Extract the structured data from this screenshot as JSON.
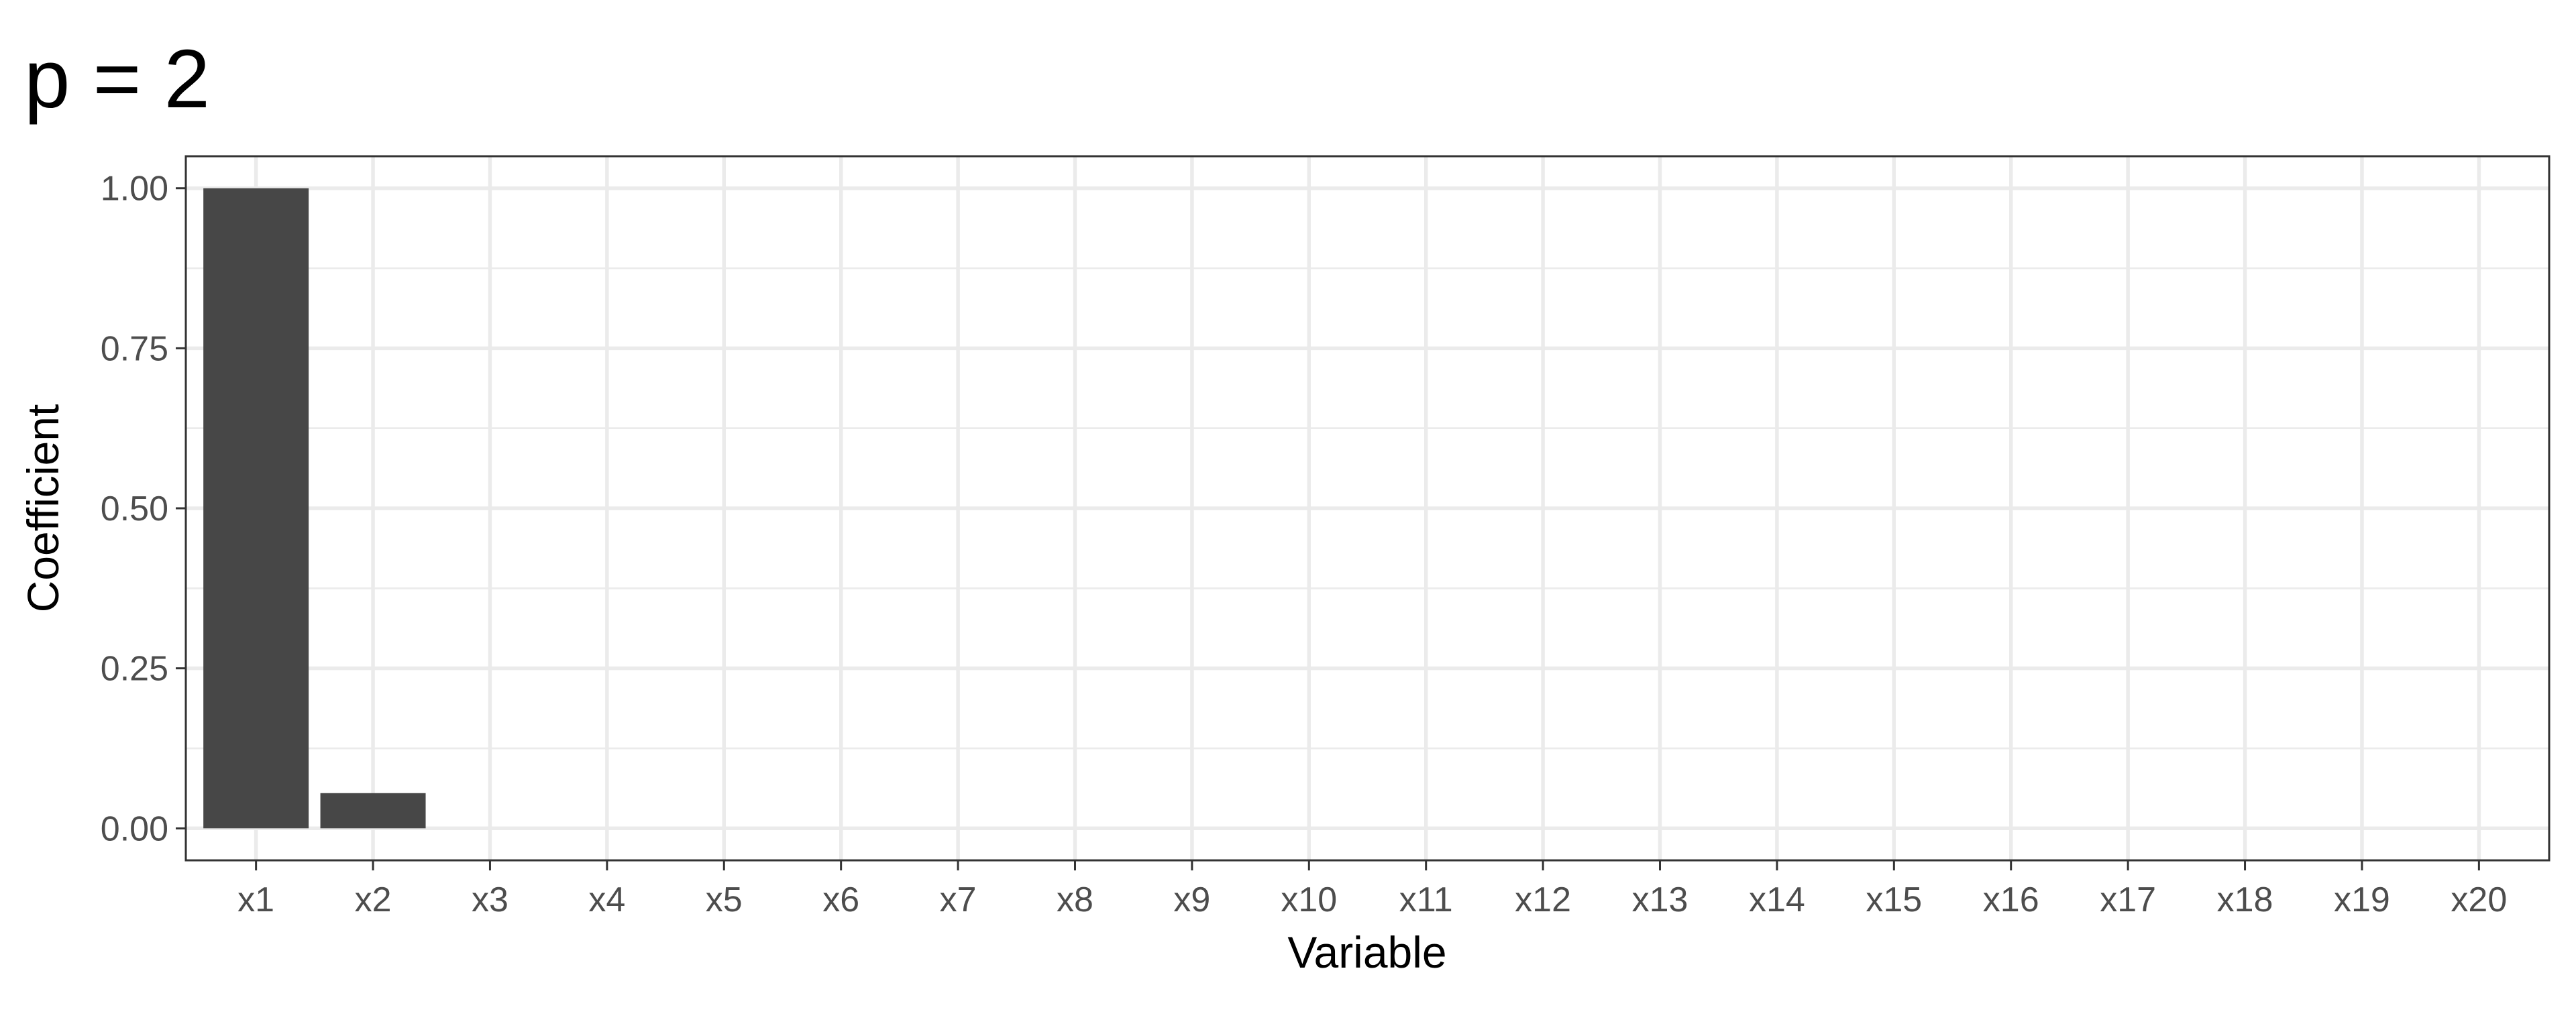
{
  "chart_data": {
    "type": "bar",
    "title": "p = 2",
    "xlabel": "Variable",
    "ylabel": "Coefficient",
    "categories": [
      "x1",
      "x2",
      "x3",
      "x4",
      "x5",
      "x6",
      "x7",
      "x8",
      "x9",
      "x10",
      "x11",
      "x12",
      "x13",
      "x14",
      "x15",
      "x16",
      "x17",
      "x18",
      "x19",
      "x20"
    ],
    "values": [
      1.0,
      0.055,
      0,
      0,
      0,
      0,
      0,
      0,
      0,
      0,
      0,
      0,
      0,
      0,
      0,
      0,
      0,
      0,
      0,
      0
    ],
    "yticks": [
      "0.00",
      "0.25",
      "0.50",
      "0.75",
      "1.00"
    ],
    "ylim": [
      -0.05,
      1.05
    ],
    "bar_color": "#474747",
    "grid": true,
    "legend": "none"
  }
}
